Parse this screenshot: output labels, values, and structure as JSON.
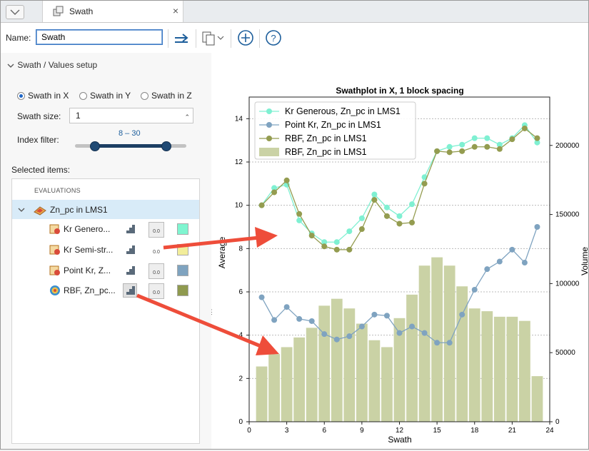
{
  "tab": {
    "title": "Swath",
    "close": "×"
  },
  "toolbar": {
    "name_label": "Name:",
    "name_value": "Swath"
  },
  "setup": {
    "section_title": "Swath / Values setup",
    "radios": [
      {
        "label": "Swath in X",
        "checked": true
      },
      {
        "label": "Swath in Y",
        "checked": false
      },
      {
        "label": "Swath in Z",
        "checked": false
      }
    ],
    "swath_size_label": "Swath size:",
    "swath_size_value": "1",
    "index_filter_label": "Index filter:",
    "index_filter_value": "8 – 30",
    "index_filter_range": {
      "min": 0,
      "max": 1,
      "low_fraction": 0.17,
      "high_fraction": 0.82
    }
  },
  "selected": {
    "label": "Selected items:",
    "header": "EVALUATIONS",
    "root": "Zn_pc in LMS1",
    "items": [
      {
        "label": "Kr Genero...",
        "color": "#7ff5d0",
        "ctl_b": "0.0"
      },
      {
        "label": "Kr Semi-str...",
        "color": "#f2ed9a",
        "ctl_b": "0.0"
      },
      {
        "label": "Point Kr, Z...",
        "color": "#7fa3bf",
        "ctl_b": "0.0"
      },
      {
        "label": "RBF, Zn_pc...",
        "color": "#8f9a4f",
        "ctl_b": "0.0"
      }
    ]
  },
  "chart_data": {
    "type": "line",
    "title": "Swathplot in X, 1 block spacing",
    "xlabel": "Swath",
    "ylabel": "Average",
    "y2label": "Volume",
    "xlim": [
      0,
      24
    ],
    "ylim": [
      0,
      15
    ],
    "y2lim": [
      0,
      235000
    ],
    "x_ticks": [
      0,
      3,
      6,
      9,
      12,
      15,
      18,
      21,
      24
    ],
    "y_ticks": [
      0,
      2,
      4,
      6,
      8,
      10,
      12,
      14
    ],
    "y2_ticks": [
      0,
      50000,
      100000,
      150000,
      200000
    ],
    "grid": "horizontal dotted",
    "legend_position": "top-left",
    "x": [
      1,
      2,
      3,
      4,
      5,
      6,
      7,
      8,
      9,
      10,
      11,
      12,
      13,
      14,
      15,
      16,
      17,
      18,
      19,
      20,
      21,
      22,
      23
    ],
    "series": [
      {
        "name": "Kr Generous, Zn_pc in LMS1",
        "color": "#7ff0d2",
        "values": [
          10.0,
          10.8,
          10.95,
          9.3,
          8.7,
          8.3,
          8.3,
          8.8,
          9.4,
          10.5,
          9.9,
          9.5,
          10.05,
          11.3,
          12.5,
          12.7,
          12.8,
          13.1,
          13.1,
          12.8,
          13.1,
          13.7,
          12.9
        ]
      },
      {
        "name": "Point Kr, Zn_pc in LMS1",
        "color": "#7fa3c0",
        "values": [
          5.75,
          4.7,
          5.3,
          4.75,
          4.65,
          4.05,
          3.8,
          3.95,
          4.4,
          4.95,
          4.9,
          4.1,
          4.4,
          4.1,
          3.65,
          3.65,
          4.95,
          6.1,
          7.05,
          7.4,
          7.95,
          7.35,
          9.0
        ]
      },
      {
        "name": "RBF, Zn_pc in LMS1",
        "color": "#949c50",
        "values": [
          10.0,
          10.6,
          11.15,
          9.6,
          8.6,
          8.1,
          7.95,
          7.95,
          8.9,
          10.25,
          9.5,
          9.15,
          9.2,
          11.0,
          12.5,
          12.45,
          12.5,
          12.7,
          12.7,
          12.6,
          13.05,
          13.55,
          13.1
        ]
      }
    ],
    "bars": {
      "name": "RBF, Zn_pc in LMS1",
      "color": "#cad2a5",
      "axis": "right",
      "values": [
        40000,
        49000,
        54000,
        61000,
        68000,
        84000,
        89000,
        82000,
        71000,
        59000,
        54000,
        75000,
        92000,
        113000,
        119000,
        113000,
        98000,
        82000,
        80000,
        76000,
        76000,
        73000,
        33000
      ]
    }
  },
  "icons": {
    "collapse": "chevron-down-icon",
    "tab": "block-model-icon",
    "export": "export-arrow-icon",
    "copy": "copy-dropdown-icon",
    "add": "add-circle-icon",
    "help": "help-circle-icon"
  }
}
